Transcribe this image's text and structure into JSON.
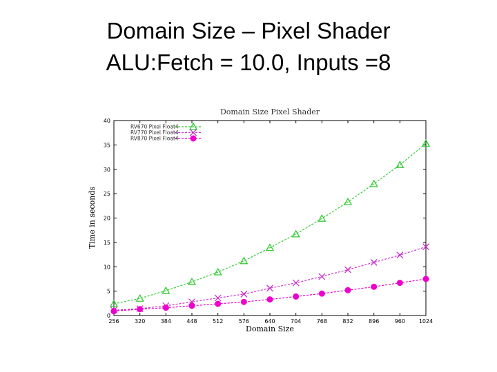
{
  "slide": {
    "title_line1": "Domain Size – Pixel Shader",
    "title_line2": "ALU:Fetch = 10.0, Inputs =8"
  },
  "chart_data": {
    "type": "line",
    "title": "Domain Size Pixel Shader",
    "xlabel": "Domain Size",
    "ylabel": "Time in seconds",
    "categories": [
      256,
      320,
      384,
      448,
      512,
      576,
      640,
      704,
      768,
      832,
      896,
      960,
      1024
    ],
    "ylim": [
      0,
      40
    ],
    "yticks": [
      0,
      5,
      10,
      15,
      20,
      25,
      30,
      35,
      40
    ],
    "grid": false,
    "legend_position": "top-left",
    "series": [
      {
        "name": "RV670 Pixel Float4",
        "marker": "triangle",
        "color": "#33cc33",
        "values": [
          2.4,
          3.5,
          5.1,
          6.9,
          8.9,
          11.2,
          13.9,
          16.7,
          19.9,
          23.3,
          27.0,
          30.9,
          35.3
        ]
      },
      {
        "name": "RV770 Pixel Float4",
        "marker": "x",
        "color": "#cc33cc",
        "values": [
          1.1,
          1.4,
          2.0,
          2.8,
          3.6,
          4.4,
          5.6,
          6.7,
          8.0,
          9.4,
          10.9,
          12.4,
          14.1
        ]
      },
      {
        "name": "RV870 Pixel Float4",
        "marker": "circle",
        "color": "#ee00cc",
        "values": [
          0.9,
          1.3,
          1.6,
          2.0,
          2.4,
          2.8,
          3.3,
          3.9,
          4.5,
          5.2,
          5.9,
          6.7,
          7.5
        ]
      }
    ]
  }
}
